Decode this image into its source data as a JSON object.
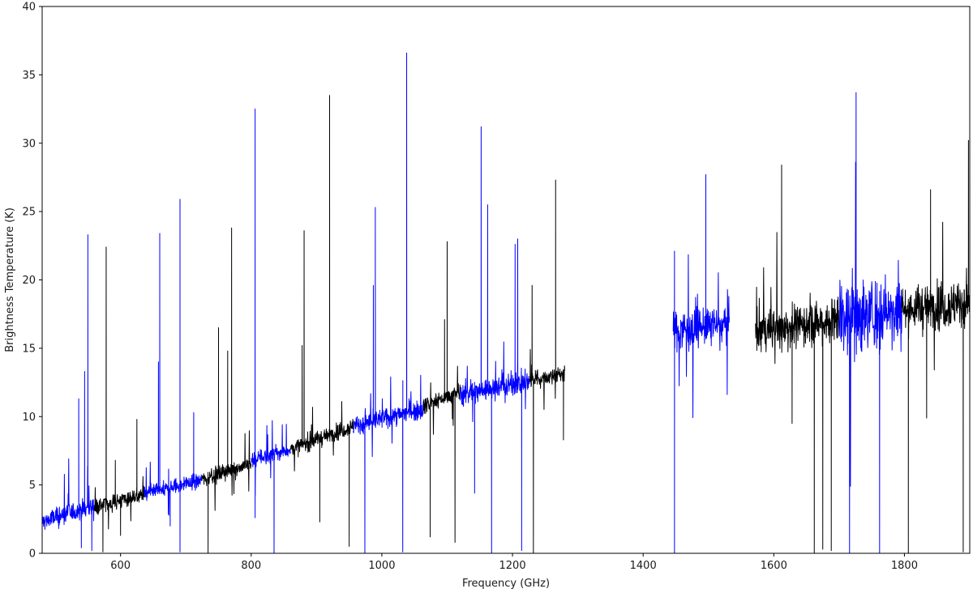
{
  "chart_data": {
    "type": "line",
    "xlabel": "Frequency (GHz)",
    "ylabel": "Brightness Temperature (K)",
    "xlim": [
      480,
      1900
    ],
    "ylim": [
      0,
      40
    ],
    "xticks": [
      600,
      800,
      1000,
      1200,
      1400,
      1600,
      1800
    ],
    "yticks": [
      0,
      5,
      10,
      15,
      20,
      25,
      30,
      35,
      40
    ],
    "grid": false,
    "legend": "none",
    "colors": {
      "blue": "#0000ff",
      "black": "#000000"
    },
    "series": [
      {
        "color": "blue",
        "x_start": 480,
        "x_end": 560,
        "base_start": 2.3,
        "base_end": 3.5,
        "noise": 1.3,
        "spikes": [
          [
            536,
            11.3
          ],
          [
            545,
            13.3
          ],
          [
            550,
            23.3
          ]
        ],
        "dips": [
          [
            540,
            0.4
          ],
          [
            556,
            0.2
          ]
        ]
      },
      {
        "color": "black",
        "x_start": 560,
        "x_end": 636,
        "base_start": 3.4,
        "base_end": 4.3,
        "noise": 1.0,
        "spikes": [
          [
            578,
            22.4
          ],
          [
            592,
            6.8
          ],
          [
            625,
            9.8
          ]
        ],
        "dips": [
          [
            573,
            0.1
          ],
          [
            600,
            1.3
          ]
        ]
      },
      {
        "color": "blue",
        "x_start": 636,
        "x_end": 724,
        "base_start": 4.3,
        "base_end": 5.4,
        "noise": 1.0,
        "spikes": [
          [
            660,
            23.4
          ],
          [
            691,
            25.9
          ],
          [
            658,
            14.0
          ],
          [
            712,
            10.3
          ]
        ],
        "dips": [
          [
            676,
            2.0
          ],
          [
            691,
            0.1
          ]
        ]
      },
      {
        "color": "black",
        "x_start": 724,
        "x_end": 800,
        "base_start": 5.4,
        "base_end": 6.6,
        "noise": 1.0,
        "spikes": [
          [
            750,
            16.5
          ],
          [
            770,
            23.8
          ],
          [
            764,
            14.8
          ]
        ],
        "dips": [
          [
            734,
            0.0
          ]
        ]
      },
      {
        "color": "blue",
        "x_start": 800,
        "x_end": 860,
        "base_start": 6.8,
        "base_end": 7.6,
        "noise": 1.0,
        "spikes": [
          [
            806,
            32.5
          ]
        ],
        "dips": [
          [
            806,
            2.6
          ],
          [
            835,
            0.0
          ]
        ]
      },
      {
        "color": "black",
        "x_start": 860,
        "x_end": 956,
        "base_start": 7.6,
        "base_end": 9.3,
        "noise": 1.0,
        "spikes": [
          [
            881,
            23.6
          ],
          [
            920,
            33.5
          ],
          [
            878,
            15.2
          ]
        ],
        "dips": [
          [
            905,
            2.3
          ],
          [
            950,
            0.5
          ]
        ]
      },
      {
        "color": "blue",
        "x_start": 956,
        "x_end": 1064,
        "base_start": 9.3,
        "base_end": 10.6,
        "noise": 1.2,
        "spikes": [
          [
            990,
            25.3
          ],
          [
            1038,
            36.6
          ],
          [
            987,
            19.6
          ]
        ],
        "dips": [
          [
            974,
            0.0
          ],
          [
            1032,
            0.1
          ]
        ]
      },
      {
        "color": "black",
        "x_start": 1064,
        "x_end": 1120,
        "base_start": 10.8,
        "base_end": 11.8,
        "noise": 1.0,
        "spikes": [
          [
            1100,
            22.8
          ],
          [
            1096,
            17.1
          ]
        ],
        "dips": [
          [
            1074,
            1.2
          ],
          [
            1112,
            0.8
          ]
        ]
      },
      {
        "color": "blue",
        "x_start": 1120,
        "x_end": 1226,
        "base_start": 11.6,
        "base_end": 12.6,
        "noise": 1.4,
        "spikes": [
          [
            1152,
            31.2
          ],
          [
            1162,
            25.5
          ],
          [
            1208,
            23.0
          ],
          [
            1204,
            22.6
          ]
        ],
        "dips": [
          [
            1142,
            4.4
          ],
          [
            1168,
            0.0
          ],
          [
            1214,
            0.2
          ]
        ]
      },
      {
        "color": "black",
        "x_start": 1226,
        "x_end": 1280,
        "base_start": 12.6,
        "base_end": 13.2,
        "noise": 1.1,
        "spikes": [
          [
            1230,
            19.6
          ],
          [
            1266,
            27.3
          ]
        ],
        "dips": [
          [
            1232,
            0.0
          ],
          [
            1278,
            8.3
          ]
        ]
      },
      {
        "color": "blue",
        "x_start": 1446,
        "x_end": 1532,
        "base_start": 16.3,
        "base_end": 16.8,
        "noise": 2.4,
        "spikes": [
          [
            1448,
            22.1
          ],
          [
            1496,
            27.7
          ]
        ],
        "dips": [
          [
            1448,
            0.0
          ]
        ]
      },
      {
        "color": "black",
        "x_start": 1572,
        "x_end": 1700,
        "base_start": 16.2,
        "base_end": 17.1,
        "noise": 2.8,
        "spikes": [
          [
            1612,
            28.4
          ]
        ],
        "dips": [
          [
            1628,
            9.5
          ],
          [
            1662,
            0.0
          ],
          [
            1675,
            0.3
          ],
          [
            1688,
            0.2
          ]
        ]
      },
      {
        "color": "blue",
        "x_start": 1700,
        "x_end": 1796,
        "base_start": 17.2,
        "base_end": 17.8,
        "noise": 4.8,
        "spikes": [
          [
            1726,
            33.7
          ]
        ],
        "dips": [
          [
            1716,
            0.0
          ],
          [
            1762,
            0.0
          ]
        ]
      },
      {
        "color": "black",
        "x_start": 1796,
        "x_end": 1900,
        "base_start": 17.8,
        "base_end": 18.3,
        "noise": 2.9,
        "spikes": [
          [
            1840,
            26.6
          ],
          [
            1898,
            30.2
          ]
        ],
        "dips": [
          [
            1806,
            0.0
          ],
          [
            1834,
            9.9
          ],
          [
            1890,
            0.1
          ]
        ]
      }
    ]
  }
}
